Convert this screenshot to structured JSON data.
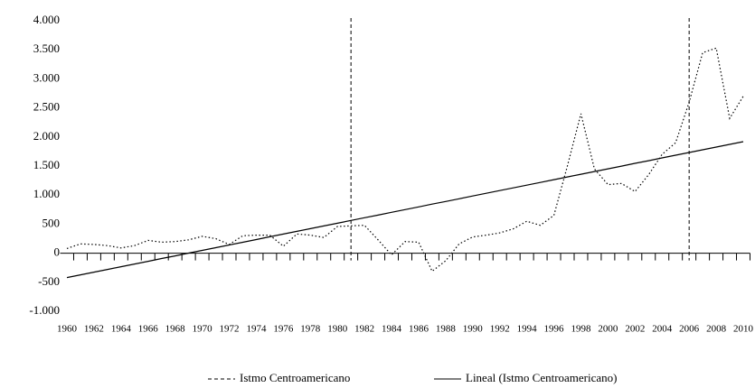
{
  "chart_data": {
    "type": "line",
    "x": [
      1960,
      1961,
      1962,
      1963,
      1964,
      1965,
      1966,
      1967,
      1968,
      1969,
      1970,
      1971,
      1972,
      1973,
      1974,
      1975,
      1976,
      1977,
      1978,
      1979,
      1980,
      1981,
      1982,
      1983,
      1984,
      1985,
      1986,
      1987,
      1988,
      1989,
      1990,
      1991,
      1992,
      1993,
      1994,
      1995,
      1996,
      1997,
      1998,
      1999,
      2000,
      2001,
      2002,
      2003,
      2004,
      2005,
      2006,
      2007,
      2008,
      2009,
      2010
    ],
    "series": [
      {
        "name": "Istmo Centroamericano",
        "color": "#000000",
        "dash": "1.5 2.5",
        "values": [
          80,
          160,
          150,
          130,
          90,
          130,
          220,
          190,
          200,
          230,
          290,
          250,
          150,
          300,
          310,
          310,
          120,
          330,
          310,
          270,
          460,
          470,
          480,
          230,
          -30,
          200,
          190,
          -310,
          -130,
          160,
          280,
          310,
          350,
          420,
          550,
          480,
          650,
          1500,
          2400,
          1450,
          1180,
          1200,
          1060,
          1350,
          1700,
          1900,
          2600,
          3450,
          3530,
          2320,
          2700
        ]
      },
      {
        "name": "Lineal (Istmo Centroamericano)",
        "color": "#000000",
        "dash": "none",
        "values": [
          -420,
          -373,
          -326,
          -280,
          -233,
          -186,
          -139,
          -92,
          -46,
          1,
          48,
          95,
          142,
          188,
          235,
          282,
          329,
          376,
          422,
          469,
          516,
          563,
          610,
          656,
          703,
          750,
          797,
          844,
          890,
          937,
          984,
          1031,
          1078,
          1124,
          1171,
          1218,
          1265,
          1312,
          1358,
          1405,
          1452,
          1499,
          1546,
          1592,
          1639,
          1686,
          1733,
          1780,
          1826,
          1873,
          1920
        ]
      }
    ],
    "vlines": [
      1981,
      2006
    ],
    "xlim": [
      1960,
      2010
    ],
    "xticks": [
      1960,
      1962,
      1964,
      1966,
      1968,
      1970,
      1972,
      1974,
      1976,
      1978,
      1980,
      1982,
      1984,
      1986,
      1988,
      1990,
      1992,
      1994,
      1996,
      1998,
      2000,
      2002,
      2004,
      2006,
      2008,
      2010
    ],
    "ylim": [
      -1000,
      4000
    ],
    "yticks": [
      {
        "value": -1000,
        "label": "-1.000"
      },
      -500,
      0,
      500,
      {
        "value": 1000,
        "label": "1.000"
      },
      {
        "value": 1500,
        "label": "1.500"
      },
      {
        "value": 2000,
        "label": "2.000"
      },
      {
        "value": 2500,
        "label": "2.500"
      },
      {
        "value": 3000,
        "label": "3.000"
      },
      {
        "value": 3500,
        "label": "3.500"
      },
      {
        "value": 4000,
        "label": "4.000"
      }
    ]
  }
}
